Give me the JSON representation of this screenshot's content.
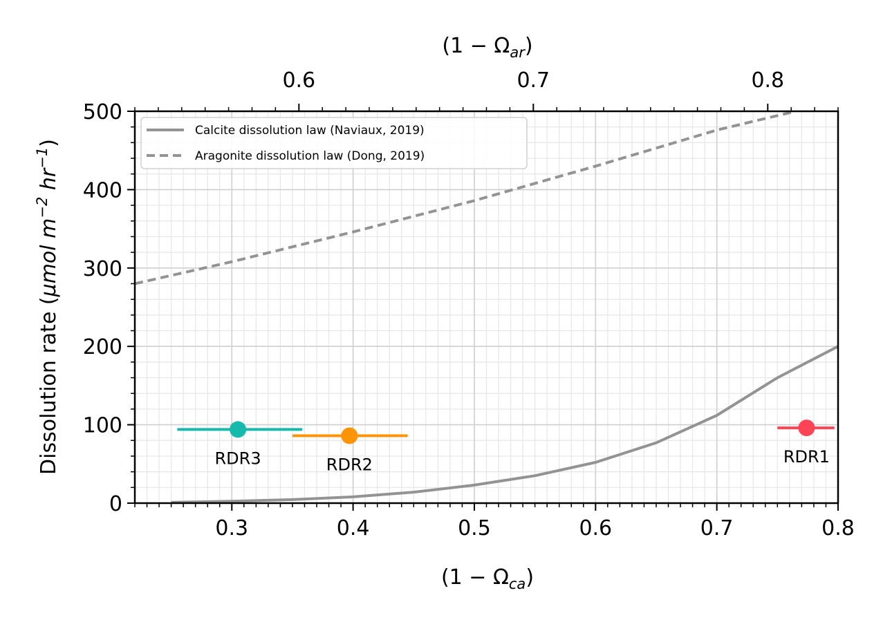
{
  "chart_data": {
    "type": "line",
    "xlabel_bottom": "(1 − Ω",
    "xlabel_bottom_sub": "ca",
    "xlabel_top": "(1 − Ω",
    "xlabel_top_sub": "ar",
    "ylabel": "Dissolution rate (",
    "ylabel_units": "μmol m",
    "ylabel_exp1": "−2",
    "ylabel_units2": " hr",
    "ylabel_exp2": "−1",
    "xlim": [
      0.22,
      0.8
    ],
    "ylim": [
      0,
      500
    ],
    "top_xlim": [
      0.53,
      0.83
    ],
    "grid": true,
    "legend_position": "top-left",
    "x_ticks": [
      "0.3",
      "0.4",
      "0.5",
      "0.6",
      "0.7",
      "0.8"
    ],
    "x_tick_values": [
      0.3,
      0.4,
      0.5,
      0.6,
      0.7,
      0.8
    ],
    "top_x_ticks": [
      "0.6",
      "0.7",
      "0.8"
    ],
    "top_x_tick_values": [
      0.6,
      0.7,
      0.8
    ],
    "y_ticks": [
      "0",
      "100",
      "200",
      "300",
      "400",
      "500"
    ],
    "y_tick_values": [
      0,
      100,
      200,
      300,
      400,
      500
    ],
    "series": [
      {
        "name": "Calcite dissolution law (Naviaux, 2019)",
        "style": "solid",
        "color": "#939393",
        "x": [
          0.25,
          0.3,
          0.35,
          0.4,
          0.45,
          0.5,
          0.55,
          0.6,
          0.65,
          0.7,
          0.75,
          0.8
        ],
        "y": [
          1,
          2.5,
          4.5,
          8,
          14,
          23,
          35,
          52,
          77,
          112,
          160,
          200
        ]
      },
      {
        "name": "Aragonite dissolution law (Dong, 2019)",
        "style": "dashed",
        "color": "#939393",
        "x": [
          0.22,
          0.3,
          0.4,
          0.5,
          0.6,
          0.7,
          0.765
        ],
        "y": [
          280,
          308,
          346,
          386,
          430,
          476,
          500
        ]
      }
    ],
    "points": [
      {
        "label": "RDR3",
        "x": 0.305,
        "y": 94,
        "xerr_low": 0.255,
        "xerr_high": 0.358,
        "color": "#17b9ac"
      },
      {
        "label": "RDR2",
        "x": 0.397,
        "y": 86,
        "xerr_low": 0.35,
        "xerr_high": 0.445,
        "color": "#ff9408"
      },
      {
        "label": "RDR1",
        "x": 0.774,
        "y": 96,
        "xerr_low": 0.75,
        "xerr_high": 0.797,
        "color": "#ff4456"
      }
    ]
  }
}
